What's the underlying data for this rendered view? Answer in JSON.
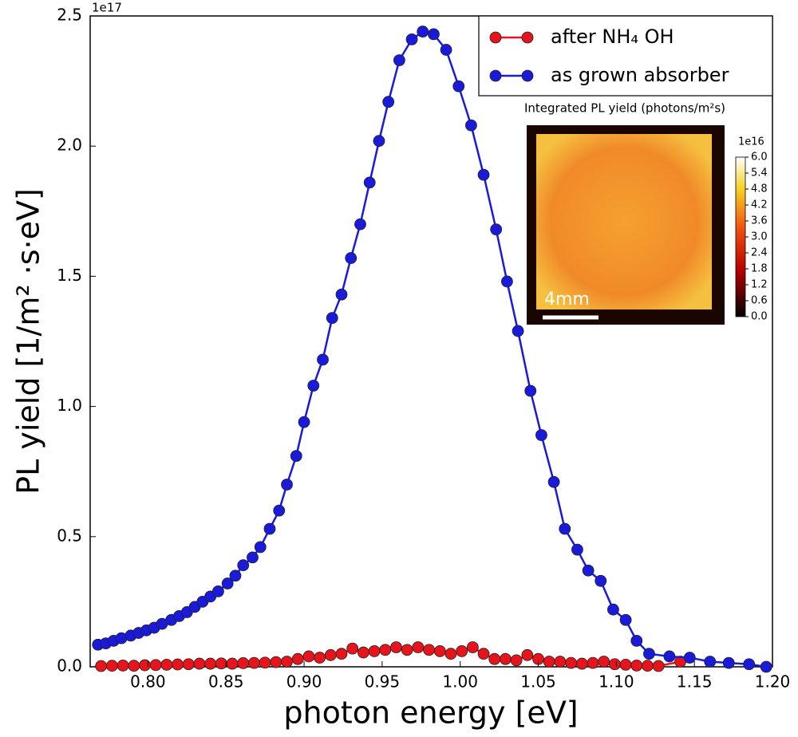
{
  "chart_data": {
    "type": "line",
    "xlabel": "photon energy [eV]",
    "ylabel": "PL yield  [1/m² ·s·eV]",
    "offset_label": "1e17",
    "xlim": [
      0.763,
      1.2
    ],
    "ylim": [
      0,
      2.5
    ],
    "xticks": [
      {
        "value": 0.8,
        "label": "0.80"
      },
      0.85,
      {
        "value": 0.9,
        "label": "0.90"
      },
      0.95,
      {
        "value": 1.0,
        "label": "1.00"
      },
      1.05,
      {
        "value": 1.1,
        "label": "1.10"
      },
      1.15,
      {
        "value": 1.2,
        "label": "1.20"
      }
    ],
    "yticks": [
      {
        "value": 0,
        "label": "0.0"
      },
      0.5,
      {
        "value": 1,
        "label": "1.0"
      },
      1.5,
      {
        "value": 2,
        "label": "2.0"
      },
      2.5
    ],
    "legend": "upper right",
    "series": [
      {
        "name": "after NH₄ OH",
        "color": "#e8141c",
        "x": [
          0.77,
          0.777,
          0.784,
          0.791,
          0.798,
          0.805,
          0.812,
          0.819,
          0.826,
          0.833,
          0.84,
          0.847,
          0.854,
          0.861,
          0.868,
          0.875,
          0.882,
          0.889,
          0.896,
          0.903,
          0.91,
          0.917,
          0.924,
          0.931,
          0.938,
          0.945,
          0.952,
          0.959,
          0.966,
          0.973,
          0.98,
          0.987,
          0.994,
          1.001,
          1.008,
          1.015,
          1.022,
          1.029,
          1.036,
          1.043,
          1.05,
          1.057,
          1.064,
          1.071,
          1.078,
          1.085,
          1.092,
          1.099,
          1.106,
          1.113,
          1.12,
          1.127,
          1.141
        ],
        "values": [
          0.003,
          0.004,
          0.005,
          0.004,
          0.006,
          0.007,
          0.008,
          0.009,
          0.01,
          0.012,
          0.012,
          0.013,
          0.012,
          0.014,
          0.015,
          0.016,
          0.018,
          0.02,
          0.03,
          0.04,
          0.035,
          0.045,
          0.05,
          0.07,
          0.055,
          0.06,
          0.065,
          0.075,
          0.065,
          0.075,
          0.065,
          0.06,
          0.05,
          0.06,
          0.075,
          0.05,
          0.03,
          0.03,
          0.025,
          0.045,
          0.03,
          0.02,
          0.02,
          0.015,
          0.012,
          0.015,
          0.02,
          0.01,
          0.008,
          0.005,
          0.004,
          0.003,
          0.02
        ]
      },
      {
        "name": "as grown absorber",
        "color": "#1a1adb",
        "x": [
          0.768,
          0.773,
          0.778,
          0.783,
          0.789,
          0.794,
          0.799,
          0.804,
          0.809,
          0.815,
          0.82,
          0.825,
          0.83,
          0.835,
          0.84,
          0.845,
          0.851,
          0.856,
          0.861,
          0.867,
          0.872,
          0.878,
          0.884,
          0.889,
          0.895,
          0.9,
          0.906,
          0.912,
          0.918,
          0.924,
          0.93,
          0.936,
          0.942,
          0.948,
          0.954,
          0.961,
          0.969,
          0.976,
          0.983,
          0.991,
          0.999,
          1.007,
          1.015,
          1.023,
          1.03,
          1.037,
          1.045,
          1.052,
          1.06,
          1.067,
          1.075,
          1.082,
          1.09,
          1.098,
          1.106,
          1.113,
          1.121,
          1.134,
          1.147,
          1.16,
          1.172,
          1.185,
          1.196
        ],
        "values": [
          0.085,
          0.09,
          0.1,
          0.11,
          0.12,
          0.13,
          0.14,
          0.15,
          0.165,
          0.18,
          0.195,
          0.21,
          0.23,
          0.25,
          0.27,
          0.29,
          0.32,
          0.35,
          0.39,
          0.42,
          0.46,
          0.53,
          0.6,
          0.7,
          0.81,
          0.94,
          1.08,
          1.18,
          1.34,
          1.43,
          1.57,
          1.7,
          1.86,
          2.02,
          2.17,
          2.33,
          2.41,
          2.44,
          2.43,
          2.37,
          2.23,
          2.08,
          1.89,
          1.68,
          1.48,
          1.29,
          1.06,
          0.89,
          0.71,
          0.53,
          0.45,
          0.37,
          0.33,
          0.22,
          0.18,
          0.1,
          0.05,
          0.04,
          0.035,
          0.02,
          0.015,
          0.01,
          0.0
        ]
      }
    ]
  },
  "inset": {
    "title": "Integrated PL yield (photons/m²s)",
    "scale_bar": "4mm",
    "colorbar_offset": "1e16",
    "colorbar_lim": [
      0,
      6
    ],
    "colorbar_ticks": [
      {
        "value": 0,
        "label": "0.0"
      },
      0.6,
      {
        "value": 1.2,
        "label": "1.2"
      },
      1.8,
      2.4,
      {
        "value": 3,
        "label": "3.0"
      },
      3.6,
      4.2,
      4.8,
      5.4,
      {
        "value": 6,
        "label": "6.0"
      }
    ]
  }
}
